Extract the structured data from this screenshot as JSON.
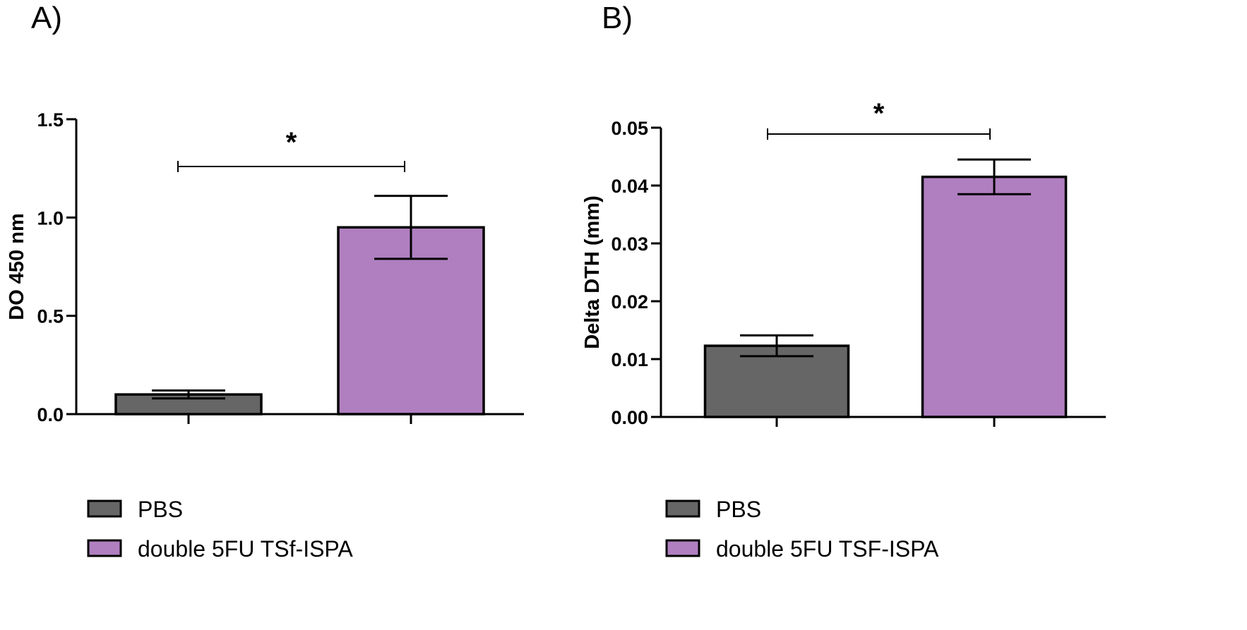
{
  "colors": {
    "pbs": "#666666",
    "treated": "#b07fc0",
    "stroke": "#000000",
    "background": "#ffffff"
  },
  "chart_data": [
    {
      "type": "bar",
      "panel_label": "A)",
      "title": "",
      "xlabel": "",
      "ylabel": "DO 450 nm",
      "ylim": [
        0,
        1.5
      ],
      "yticks": [
        0.0,
        0.5,
        1.0,
        1.5
      ],
      "ytick_labels": [
        "0.0",
        "0.5",
        "1.0",
        "1.5"
      ],
      "categories": [
        "PBS",
        "double 5FU TSf-ISPA"
      ],
      "values": [
        0.1,
        0.95
      ],
      "errors": [
        0.02,
        0.16
      ],
      "significance": "*",
      "legend": [
        "PBS",
        "double 5FU TSf-ISPA"
      ],
      "legend_position": "bottom-left"
    },
    {
      "type": "bar",
      "panel_label": "B)",
      "title": "",
      "xlabel": "",
      "ylabel": "Delta DTH (mm)",
      "ylim": [
        0,
        0.05
      ],
      "yticks": [
        0.0,
        0.01,
        0.02,
        0.03,
        0.04,
        0.05
      ],
      "ytick_labels": [
        "0.00",
        "0.01",
        "0.02",
        "0.03",
        "0.04",
        "0.05"
      ],
      "categories": [
        "PBS",
        "double 5FU TSF-ISPA"
      ],
      "values": [
        0.0123,
        0.0415
      ],
      "errors": [
        0.0018,
        0.003
      ],
      "significance": "*",
      "legend": [
        "PBS",
        "double 5FU TSF-ISPA"
      ],
      "legend_position": "bottom-left"
    }
  ]
}
